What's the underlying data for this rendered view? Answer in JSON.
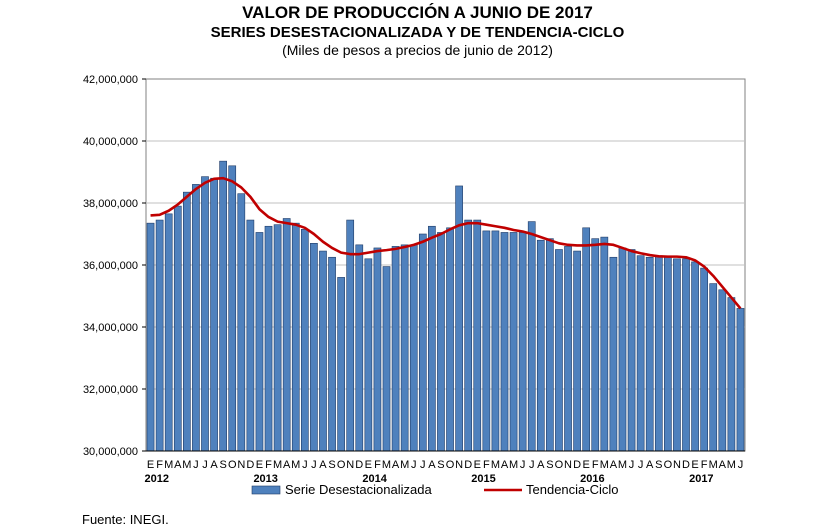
{
  "header": {
    "title": "VALOR DE PRODUCCIÓN A JUNIO DE 2017",
    "subtitle": "SERIES DESESTACIONALIZADA Y DE TENDENCIA-CICLO",
    "units": "(Miles de pesos a precios de junio de 2012)"
  },
  "source": "Fuente: INEGI.",
  "colors": {
    "bars": "#4f81bd",
    "bar_edge": "#1f3b66",
    "line": "#c00000",
    "plot_bg": "#ffffff",
    "grid": "#c0c0c0"
  },
  "chart_data": {
    "type": "bar",
    "title": "VALOR DE PRODUCCIÓN A JUNIO DE 2017",
    "ylim": [
      30000000,
      42000000
    ],
    "yticks": [
      30000000,
      32000000,
      34000000,
      36000000,
      38000000,
      40000000,
      42000000
    ],
    "ytick_labels": [
      "30,000,000",
      "32,000,000",
      "34,000,000",
      "36,000,000",
      "38,000,000",
      "40,000,000",
      "42,000,000"
    ],
    "grid": "horizontal",
    "legend": "bottom",
    "month_labels": [
      "E",
      "F",
      "M",
      "A",
      "M",
      "J",
      "J",
      "A",
      "S",
      "O",
      "N",
      "D"
    ],
    "year_labels": [
      "2012",
      "2013",
      "2014",
      "2015",
      "2016",
      "2017"
    ],
    "categories": [
      "E-2012",
      "F-2012",
      "M-2012",
      "A-2012",
      "M-2012",
      "J-2012",
      "J-2012",
      "A-2012",
      "S-2012",
      "O-2012",
      "N-2012",
      "D-2012",
      "E-2013",
      "F-2013",
      "M-2013",
      "A-2013",
      "M-2013",
      "J-2013",
      "J-2013",
      "A-2013",
      "S-2013",
      "O-2013",
      "N-2013",
      "D-2013",
      "E-2014",
      "F-2014",
      "M-2014",
      "A-2014",
      "M-2014",
      "J-2014",
      "J-2014",
      "A-2014",
      "S-2014",
      "O-2014",
      "N-2014",
      "D-2014",
      "E-2015",
      "F-2015",
      "M-2015",
      "A-2015",
      "M-2015",
      "J-2015",
      "J-2015",
      "A-2015",
      "S-2015",
      "O-2015",
      "N-2015",
      "D-2015",
      "E-2016",
      "F-2016",
      "M-2016",
      "A-2016",
      "M-2016",
      "J-2016",
      "J-2016",
      "A-2016",
      "S-2016",
      "O-2016",
      "N-2016",
      "D-2016",
      "E-2017",
      "F-2017",
      "M-2017",
      "A-2017",
      "M-2017",
      "J-2017"
    ],
    "series": [
      {
        "name": "Serie Desestacionalizada",
        "type": "bar",
        "values": [
          37350000,
          37450000,
          37650000,
          37900000,
          38350000,
          38600000,
          38850000,
          38800000,
          39350000,
          39200000,
          38300000,
          37450000,
          37050000,
          37250000,
          37300000,
          37500000,
          37350000,
          37150000,
          36700000,
          36450000,
          36250000,
          35600000,
          37450000,
          36650000,
          36200000,
          36550000,
          35950000,
          36600000,
          36650000,
          36650000,
          37000000,
          37250000,
          37050000,
          37200000,
          38550000,
          37450000,
          37450000,
          37100000,
          37100000,
          37050000,
          37050000,
          37050000,
          37400000,
          36800000,
          36850000,
          36500000,
          36600000,
          36450000,
          37200000,
          36850000,
          36900000,
          36250000,
          36550000,
          36500000,
          36300000,
          36250000,
          36300000,
          36250000,
          36200000,
          36200000,
          36100000,
          35900000,
          35400000,
          35200000,
          34950000,
          34600000
        ]
      },
      {
        "name": "Tendencia-Ciclo",
        "type": "line",
        "values": [
          37600000,
          37620000,
          37750000,
          37950000,
          38200000,
          38450000,
          38650000,
          38780000,
          38800000,
          38700000,
          38500000,
          38200000,
          37800000,
          37550000,
          37400000,
          37350000,
          37300000,
          37200000,
          37000000,
          36750000,
          36550000,
          36400000,
          36350000,
          36350000,
          36400000,
          36450000,
          36480000,
          36520000,
          36580000,
          36650000,
          36750000,
          36880000,
          37000000,
          37150000,
          37280000,
          37350000,
          37350000,
          37300000,
          37250000,
          37200000,
          37130000,
          37080000,
          37000000,
          36900000,
          36800000,
          36700000,
          36650000,
          36630000,
          36630000,
          36650000,
          36680000,
          36650000,
          36550000,
          36450000,
          36380000,
          36320000,
          36280000,
          36270000,
          36270000,
          36250000,
          36150000,
          35950000,
          35650000,
          35300000,
          34950000,
          34600000
        ]
      }
    ]
  }
}
